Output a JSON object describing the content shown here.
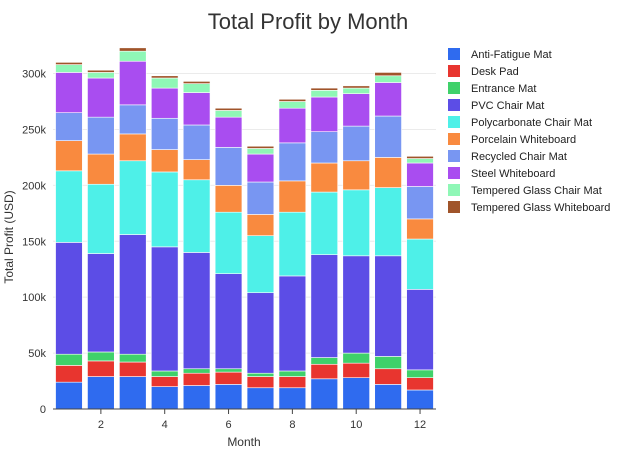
{
  "chart_data": {
    "type": "bar",
    "stacked": true,
    "title": "Total Profit by Month",
    "xlabel": "Month",
    "ylabel": "Total Profit (USD)",
    "categories": [
      1,
      2,
      3,
      4,
      5,
      6,
      7,
      8,
      9,
      10,
      11,
      12
    ],
    "x_ticks": [
      2,
      4,
      6,
      8,
      10,
      12
    ],
    "x_tick_labels": [
      "2",
      "4",
      "6",
      "8",
      "10",
      "12"
    ],
    "ylim": [
      0,
      330000
    ],
    "y_ticks": [
      0,
      50000,
      100000,
      150000,
      200000,
      250000,
      300000
    ],
    "y_tick_labels": [
      "0",
      "50k",
      "100k",
      "150k",
      "200k",
      "250k",
      "300k"
    ],
    "legend_position": "right",
    "series": [
      {
        "name": "Anti-Fatigue Mat",
        "color": "#2f6bef",
        "values": [
          24000,
          29000,
          29000,
          20000,
          21000,
          22000,
          19000,
          19000,
          27000,
          28000,
          22000,
          17000
        ]
      },
      {
        "name": "Desk Pad",
        "color": "#e8352f",
        "values": [
          15000,
          14000,
          13000,
          9000,
          11000,
          11000,
          10000,
          10000,
          13000,
          13000,
          14000,
          11000
        ]
      },
      {
        "name": "Entrance Mat",
        "color": "#3fd16a",
        "values": [
          10000,
          8000,
          7000,
          5000,
          4000,
          3000,
          3000,
          5000,
          6000,
          9000,
          11000,
          7000
        ]
      },
      {
        "name": "PVC Chair Mat",
        "color": "#5c4de6",
        "values": [
          100000,
          88000,
          107000,
          111000,
          104000,
          85000,
          72000,
          85000,
          92000,
          87000,
          90000,
          72000
        ]
      },
      {
        "name": "Polycarbonate Chair Mat",
        "color": "#4ef0e8",
        "values": [
          64000,
          62000,
          66000,
          67000,
          65000,
          55000,
          51000,
          57000,
          56000,
          59000,
          61000,
          45000
        ]
      },
      {
        "name": "Porcelain Whiteboard",
        "color": "#f98a3f",
        "values": [
          27000,
          27000,
          24000,
          20000,
          18000,
          24000,
          19000,
          28000,
          26000,
          26000,
          27000,
          18000
        ]
      },
      {
        "name": "Recycled Chair Mat",
        "color": "#7896f2",
        "values": [
          25000,
          33000,
          26000,
          28000,
          31000,
          34000,
          29000,
          34000,
          28000,
          31000,
          37000,
          29000
        ]
      },
      {
        "name": "Steel Whiteboard",
        "color": "#a94df0",
        "values": [
          36000,
          35000,
          39000,
          27000,
          29000,
          27000,
          25000,
          31000,
          31000,
          29000,
          30000,
          21000
        ]
      },
      {
        "name": "Tempered Glass Chair Mat",
        "color": "#8ff7b6",
        "values": [
          7000,
          5000,
          9000,
          9000,
          8000,
          6000,
          5000,
          6000,
          6000,
          5000,
          6000,
          4000
        ]
      },
      {
        "name": "Tempered Glass Whiteboard",
        "color": "#a0542a",
        "values": [
          2000,
          2000,
          3000,
          2000,
          2000,
          2000,
          2000,
          2000,
          2000,
          2000,
          3000,
          2000
        ]
      }
    ]
  }
}
